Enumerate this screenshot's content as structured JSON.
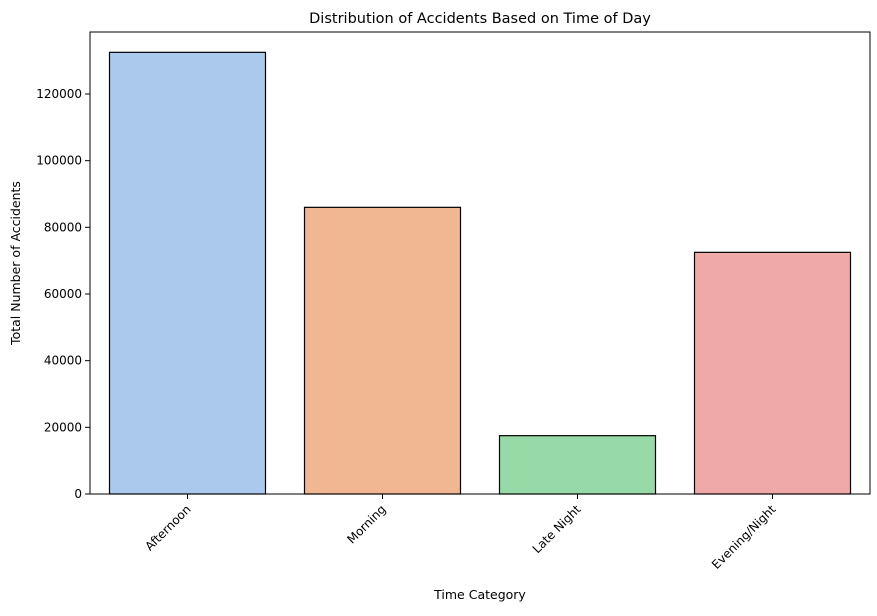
{
  "chart_data": {
    "type": "bar",
    "title": "Distribution of Accidents Based on Time of Day",
    "xlabel": "Time Category",
    "ylabel": "Total Number of Accidents",
    "categories": [
      "Afternoon",
      "Morning",
      "Late Night",
      "Evening/Night"
    ],
    "values": [
      132500,
      86000,
      17500,
      72500
    ],
    "colors": [
      "#abc9ed",
      "#f0b792",
      "#98d9a8",
      "#f0a9a9"
    ],
    "edge_color": "#000000",
    "ylim": [
      0,
      138600
    ],
    "yticks": [
      0,
      20000,
      40000,
      60000,
      80000,
      100000,
      120000
    ],
    "ytick_labels": [
      "0",
      "20000",
      "40000",
      "60000",
      "80000",
      "100000",
      "120000"
    ],
    "xtick_rotation_deg": 45,
    "grid": false,
    "legend": "none"
  }
}
